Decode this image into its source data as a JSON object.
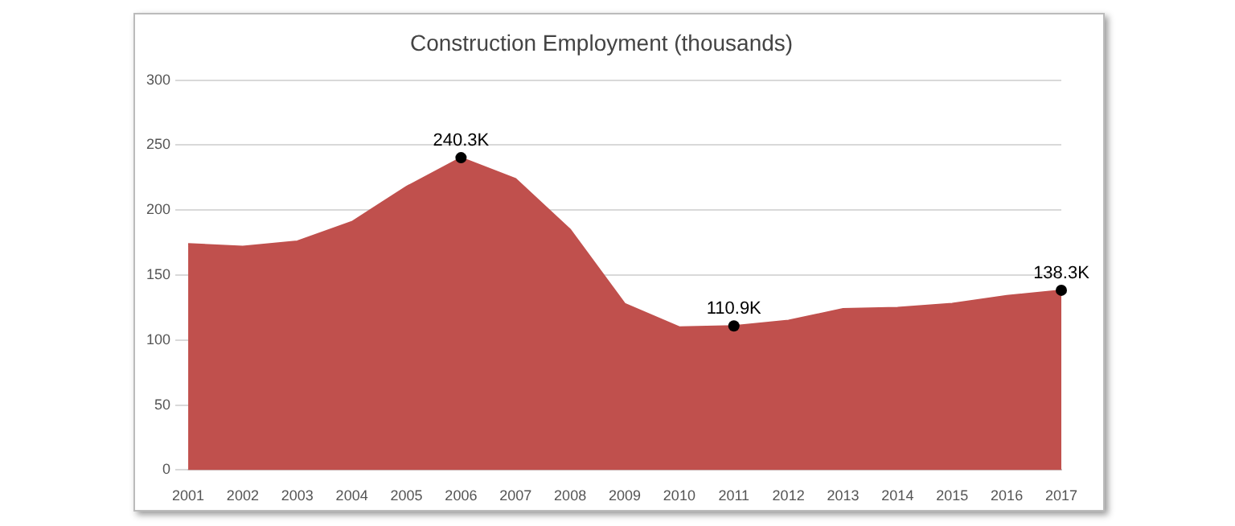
{
  "chart_data": {
    "type": "area",
    "title": "Construction Employment (thousands)",
    "categories": [
      "2001",
      "2002",
      "2003",
      "2004",
      "2005",
      "2006",
      "2007",
      "2008",
      "2009",
      "2010",
      "2011",
      "2012",
      "2013",
      "2014",
      "2015",
      "2016",
      "2017"
    ],
    "values": [
      174,
      172,
      176,
      191,
      218,
      240.3,
      224,
      185,
      128,
      110,
      110.9,
      115,
      124,
      125,
      128,
      134,
      138.3
    ],
    "color": "#c0504d",
    "ylim": [
      0,
      300
    ],
    "yticks": [
      0,
      50,
      100,
      150,
      200,
      250,
      300
    ],
    "grid": "y",
    "legend": false,
    "annotations": [
      {
        "text": "240.3K",
        "x": "2006",
        "y": 240.3
      },
      {
        "text": "110.9K",
        "x": "2011",
        "y": 110.9
      },
      {
        "text": "138.3K",
        "x": "2017",
        "y": 138.3
      }
    ]
  }
}
